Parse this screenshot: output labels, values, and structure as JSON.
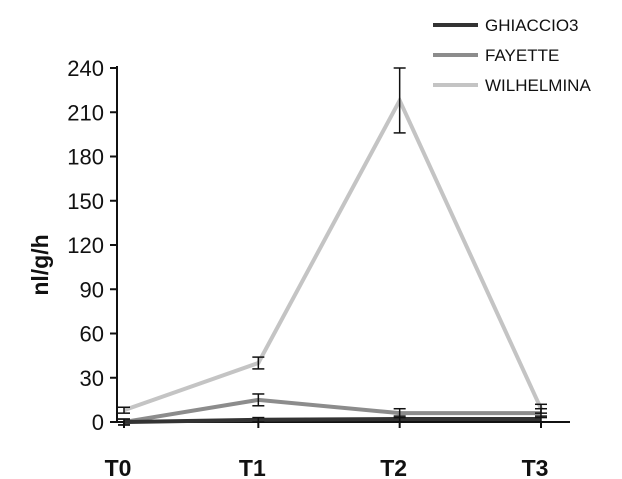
{
  "chart_data": {
    "type": "line",
    "title": "",
    "xlabel": "",
    "ylabel": "nl/g/h",
    "categories": [
      "T0",
      "T1",
      "T2",
      "T3"
    ],
    "ylim": [
      0,
      240
    ],
    "yticks": [
      0,
      30,
      60,
      90,
      120,
      150,
      180,
      210,
      240
    ],
    "grid": false,
    "legend_position": "top-right",
    "series": [
      {
        "name": "GHIACCIO3",
        "color": "#333333",
        "values": [
          0,
          1.5,
          2,
          2
        ],
        "errors": [
          2,
          1.5,
          2,
          2
        ]
      },
      {
        "name": "FAYETTE",
        "color": "#8c8c8c",
        "values": [
          0,
          15,
          6,
          6
        ],
        "errors": [
          2,
          4,
          3,
          3
        ]
      },
      {
        "name": "WILHELMINA",
        "color": "#c4c4c4",
        "values": [
          8,
          40,
          218,
          9
        ],
        "errors": [
          2,
          4,
          22,
          3
        ]
      }
    ]
  }
}
